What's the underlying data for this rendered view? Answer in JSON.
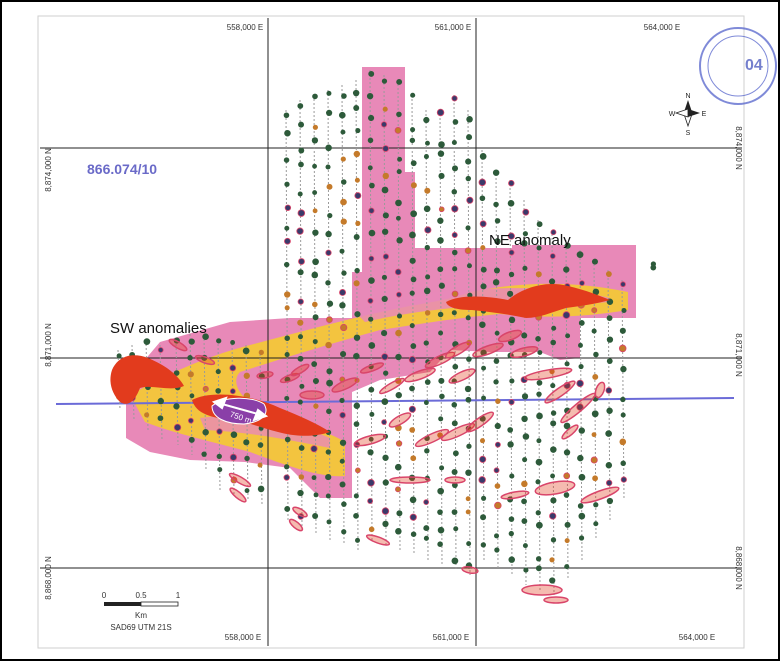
{
  "map": {
    "sheet_label": "866.074/10",
    "anomaly_labels": {
      "sw": "SW anomalies",
      "ne": "NE anomaly"
    },
    "distance_label": "750 m",
    "easting_ticks": [
      "558,000 E",
      "561,000 E",
      "564,000 E"
    ],
    "northing_ticks": [
      "8,874,000 N",
      "8,871,000 N",
      "8,868,000 N"
    ],
    "north_arrow": {
      "n": "N",
      "s": "S",
      "e": "E",
      "w": "W"
    },
    "scale_bar": {
      "ticks": [
        "0",
        "0.5",
        "1"
      ],
      "unit": "Km",
      "datum": "SAD69 UTM 21S"
    },
    "stamp": {
      "text": "04"
    },
    "colors": {
      "mask_pink": "#e889b8",
      "zone_yellow": "#f3c43f",
      "anomaly_red": "#e23b1d",
      "ellipse_outline": "#d9456a",
      "grid_line": "#222222",
      "section_line": "#6b6bd8",
      "sheet_label": "#6a6ac8",
      "drill_hole": "#2d5a3a",
      "center_blob": "#8a3fa8"
    }
  }
}
